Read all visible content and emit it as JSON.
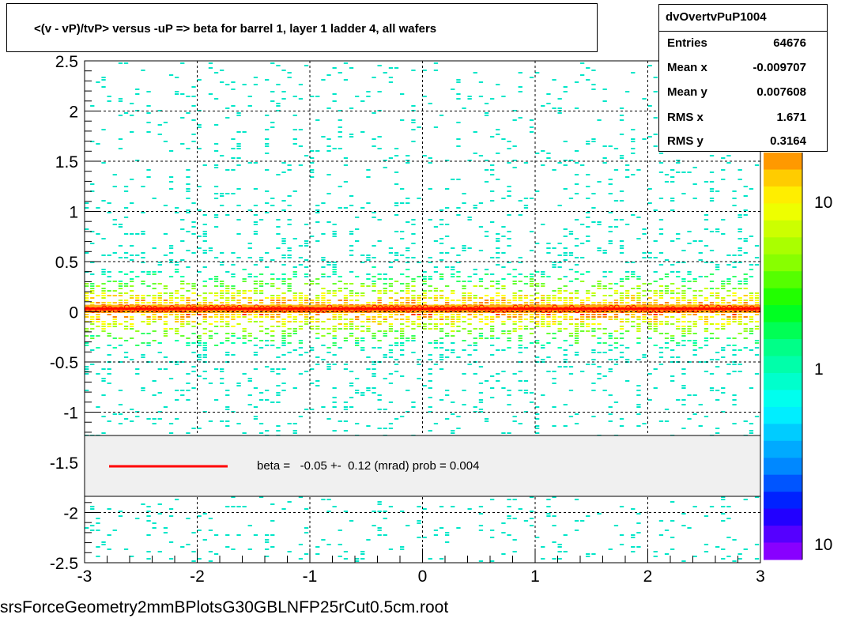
{
  "title": "<(v - vP)/tvP> versus  -uP => beta for barrel 1, layer 1 ladder 4, all wafers",
  "stats": {
    "name": "dvOvertvPuP1004",
    "rows": [
      {
        "label": "Entries",
        "value": "64676"
      },
      {
        "label": "Mean x",
        "value": "-0.009707"
      },
      {
        "label": "Mean y",
        "value": "0.007608"
      },
      {
        "label": "RMS x",
        "value": "1.671"
      },
      {
        "label": "RMS y",
        "value": "0.3164"
      }
    ]
  },
  "fit_legend": {
    "text": "beta =   -0.05 +-  0.12 (mrad) prob = 0.004",
    "line_color": "#ff0000"
  },
  "footer": "srsForceGeometry2mmBPlotsG30GBLNFP25rCut0.5cm.root",
  "chart_data": {
    "type": "heatmap",
    "xlim": [
      -3,
      3
    ],
    "ylim": [
      -2.5,
      2.5
    ],
    "x_ticks": [
      "-3",
      "-2",
      "-1",
      "0",
      "1",
      "2",
      "3"
    ],
    "y_ticks": [
      "-2.5",
      "-2",
      "-1.5",
      "-1",
      "-0.5",
      "0",
      "0.5",
      "1",
      "1.5",
      "2",
      "2.5"
    ],
    "y_tick_values": [
      -2.5,
      -2,
      -1.5,
      -1,
      -0.5,
      0,
      0.5,
      1,
      1.5,
      2,
      2.5
    ],
    "grid": true,
    "colorbar_labels": [
      "10",
      "1",
      "10"
    ],
    "colorbar_scale": "log",
    "profile": {
      "x_range": [
        -3,
        3
      ],
      "mean_y": 0.03,
      "color": "#ff0000"
    },
    "fit_line": {
      "y": 0.03,
      "color": "#ff0000"
    }
  }
}
